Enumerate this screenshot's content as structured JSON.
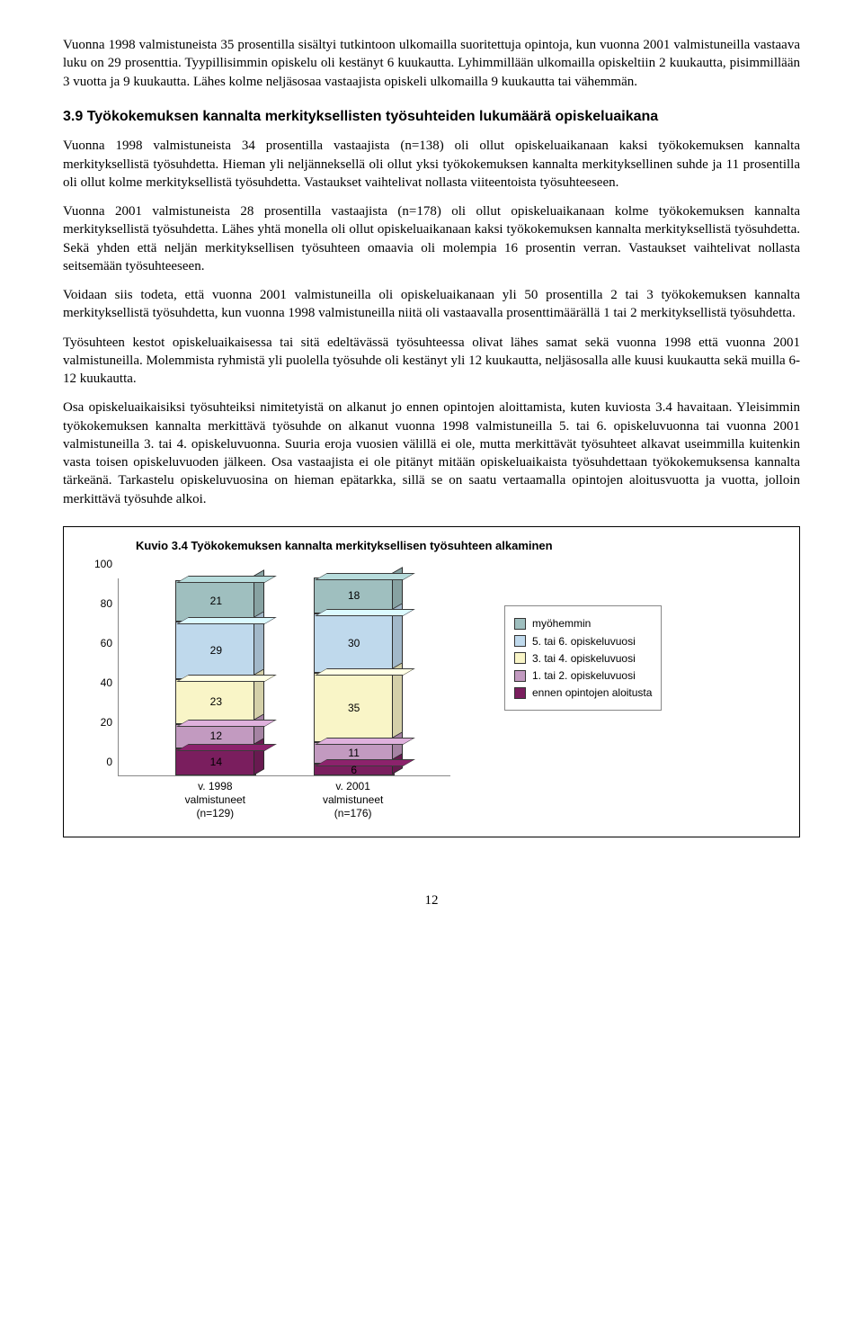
{
  "paragraphs": {
    "p1": "Vuonna 1998 valmistuneista 35 prosentilla sisältyi tutkintoon ulkomailla suoritettuja opintoja, kun vuonna 2001 valmistuneilla vastaava luku on 29 prosenttia. Tyypillisimmin opiskelu oli kestänyt 6 kuukautta. Lyhimmillään ulkomailla opiskeltiin 2 kuukautta, pisimmillään 3 vuotta ja 9 kuukautta. Lähes kolme neljäsosaa vastaajista opiskeli ulkomailla 9 kuukautta tai vähemmän.",
    "p2": "Vuonna 1998 valmistuneista 34 prosentilla vastaajista (n=138) oli ollut opiskeluaikanaan kaksi työkokemuksen kannalta merkityksellistä työsuhdetta. Hieman yli neljänneksellä oli ollut yksi työkokemuksen kannalta merkityksellinen suhde ja 11 prosentilla oli ollut kolme merkityksellistä työsuhdetta. Vastaukset vaihtelivat nollasta viiteentoista työsuhteeseen.",
    "p3": "Vuonna 2001 valmistuneista 28 prosentilla vastaajista (n=178) oli ollut opiskeluaikanaan kolme työkokemuksen kannalta merkityksellistä työsuhdetta. Lähes yhtä monella oli ollut opiskeluaikanaan kaksi työkokemuksen kannalta merkityksellistä työsuhdetta. Sekä yhden että neljän merkityksellisen työsuhteen omaavia oli molempia 16 prosentin verran. Vastaukset vaihtelivat nollasta seitsemään työsuhteeseen.",
    "p4": "Voidaan siis todeta, että vuonna 2001 valmistuneilla oli opiskeluaikanaan yli 50 prosentilla 2 tai 3 työkokemuksen kannalta merkityksellistä työsuhdetta, kun vuonna 1998 valmistuneilla niitä oli vastaavalla prosenttimäärällä 1 tai 2 merkityksellistä työsuhdetta.",
    "p5": "Työsuhteen kestot opiskeluaikaisessa tai sitä edeltävässä työsuhteessa olivat lähes samat sekä vuonna 1998 että vuonna 2001 valmistuneilla. Molemmista ryhmistä yli puolella työsuhde oli kestänyt yli 12 kuukautta, neljäsosalla alle kuusi kuukautta sekä muilla 6-12 kuukautta.",
    "p6": "Osa opiskeluaikaisiksi työsuhteiksi nimitetyistä on alkanut jo ennen opintojen aloittamista, kuten kuviosta 3.4 havaitaan. Yleisimmin työkokemuksen kannalta merkittävä työsuhde on alkanut vuonna 1998 valmistuneilla 5. tai 6. opiskeluvuonna tai vuonna 2001 valmistuneilla 3. tai 4. opiskeluvuonna. Suuria eroja vuosien välillä ei ole, mutta merkittävät työsuhteet alkavat useimmilla kuitenkin vasta toisen opiskeluvuoden jälkeen. Osa vastaajista ei ole pitänyt mitään opiskeluaikaista työsuhdettaan työkokemuksensa kannalta tärkeänä. Tarkastelu opiskeluvuosina on hieman epätarkka, sillä se on saatu vertaamalla opintojen aloitusvuotta ja vuotta, jolloin merkittävä työsuhde alkoi."
  },
  "heading": "3.9 Työkokemuksen kannalta merkityksellisten työsuhteiden lukumäärä opiskeluaikana",
  "chart": {
    "title": "Kuvio 3.4 Työkokemuksen kannalta merkityksellisen työsuhteen alkaminen",
    "ylim": [
      0,
      100
    ],
    "ytick_step": 20,
    "yticks": [
      "0",
      "20",
      "40",
      "60",
      "80",
      "100"
    ],
    "colors": {
      "myohemmin": "#9fbfbf",
      "v56": "#bfd9ec",
      "v34": "#f9f5c7",
      "v12": "#c29ac0",
      "ennen": "#7a1e5e"
    },
    "series": [
      {
        "xlabel": "v. 1998 valmistuneet\n(n=129)",
        "segments": [
          {
            "key": "ennen",
            "value": 14,
            "label": "14"
          },
          {
            "key": "v12",
            "value": 12,
            "label": "12"
          },
          {
            "key": "v34",
            "value": 23,
            "label": "23"
          },
          {
            "key": "v56",
            "value": 29,
            "label": "29"
          },
          {
            "key": "myohemmin",
            "value": 21,
            "label": "21"
          }
        ]
      },
      {
        "xlabel": "v. 2001 valmistuneet\n(n=176)",
        "segments": [
          {
            "key": "ennen",
            "value": 6,
            "label": "6"
          },
          {
            "key": "v12",
            "value": 11,
            "label": "11"
          },
          {
            "key": "v34",
            "value": 35,
            "label": "35"
          },
          {
            "key": "v56",
            "value": 30,
            "label": "30"
          },
          {
            "key": "myohemmin",
            "value": 18,
            "label": "18"
          }
        ]
      }
    ],
    "legend": [
      {
        "key": "myohemmin",
        "label": "myöhemmin"
      },
      {
        "key": "v56",
        "label": "5. tai 6. opiskeluvuosi"
      },
      {
        "key": "v34",
        "label": "3. tai 4. opiskeluvuosi"
      },
      {
        "key": "v12",
        "label": "1. tai 2. opiskeluvuosi"
      },
      {
        "key": "ennen",
        "label": "ennen opintojen aloitusta"
      }
    ]
  },
  "pageNumber": "12"
}
